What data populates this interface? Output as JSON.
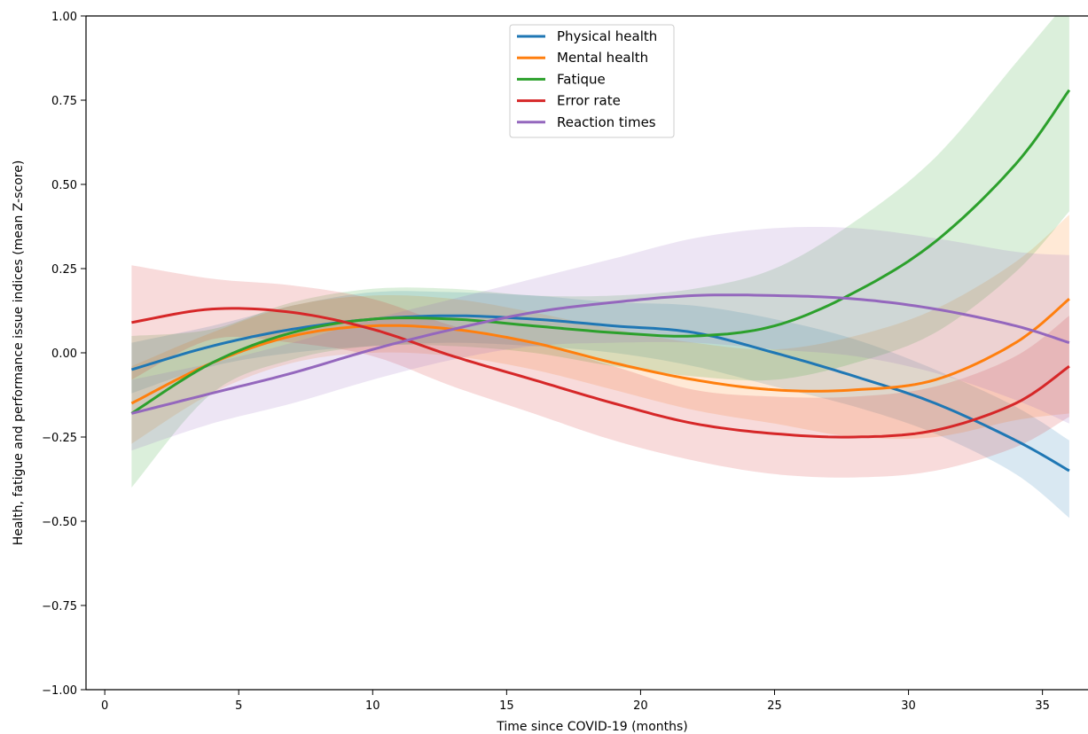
{
  "chart_data": {
    "type": "line",
    "title": "",
    "xlabel": "Time since COVID-19 (months)",
    "ylabel": "Health, fatigue and performance issue indices (mean Z-score)",
    "xlim": [
      -0.7,
      36.7
    ],
    "ylim": [
      -1.0,
      1.0
    ],
    "x_ticks": [
      0,
      5,
      10,
      15,
      20,
      25,
      30,
      35
    ],
    "x_tick_labels": [
      "0",
      "5",
      "10",
      "15",
      "20",
      "25",
      "30",
      "35"
    ],
    "y_ticks": [
      -1.0,
      -0.75,
      -0.5,
      -0.25,
      0.0,
      0.25,
      0.5,
      0.75,
      1.0
    ],
    "y_tick_labels": [
      "−1.00",
      "−0.75",
      "−0.50",
      "−0.25",
      "0.00",
      "0.25",
      "0.50",
      "0.75",
      "1.00"
    ],
    "grid": false,
    "legend_position": "top-center",
    "x": [
      1,
      4,
      7,
      10,
      13,
      16,
      19,
      22,
      25,
      28,
      31,
      34,
      36
    ],
    "series": [
      {
        "name": "Physical health",
        "color": "#1f77b4",
        "values": [
          -0.05,
          0.02,
          0.07,
          0.1,
          0.11,
          0.1,
          0.08,
          0.06,
          0.0,
          -0.07,
          -0.15,
          -0.26,
          -0.35
        ],
        "lower": [
          -0.12,
          -0.04,
          0.0,
          0.02,
          0.03,
          0.02,
          0.0,
          -0.04,
          -0.1,
          -0.16,
          -0.24,
          -0.36,
          -0.49
        ],
        "upper": [
          0.03,
          0.08,
          0.14,
          0.18,
          0.18,
          0.17,
          0.15,
          0.14,
          0.1,
          0.04,
          -0.05,
          -0.16,
          -0.26
        ]
      },
      {
        "name": "Mental health",
        "color": "#ff7f0e",
        "values": [
          -0.15,
          -0.03,
          0.05,
          0.08,
          0.07,
          0.03,
          -0.03,
          -0.08,
          -0.11,
          -0.11,
          -0.08,
          0.03,
          0.16
        ],
        "lower": [
          -0.27,
          -0.12,
          -0.03,
          0.0,
          -0.01,
          -0.05,
          -0.11,
          -0.17,
          -0.21,
          -0.25,
          -0.25,
          -0.2,
          -0.18
        ],
        "upper": [
          -0.04,
          0.06,
          0.14,
          0.17,
          0.16,
          0.12,
          0.07,
          0.03,
          0.01,
          0.05,
          0.13,
          0.27,
          0.41
        ]
      },
      {
        "name": "Fatique",
        "color": "#2ca02c",
        "values": [
          -0.18,
          -0.03,
          0.06,
          0.1,
          0.1,
          0.08,
          0.06,
          0.05,
          0.08,
          0.18,
          0.33,
          0.56,
          0.78
        ],
        "lower": [
          -0.4,
          -0.12,
          -0.02,
          0.02,
          0.02,
          0.0,
          -0.04,
          -0.07,
          -0.08,
          -0.03,
          0.06,
          0.24,
          0.42
        ],
        "upper": [
          0.05,
          0.07,
          0.15,
          0.19,
          0.19,
          0.17,
          0.17,
          0.19,
          0.25,
          0.39,
          0.58,
          0.86,
          1.05
        ]
      },
      {
        "name": "Error rate",
        "color": "#d62728",
        "values": [
          0.09,
          0.13,
          0.12,
          0.07,
          -0.01,
          -0.08,
          -0.15,
          -0.21,
          -0.24,
          -0.25,
          -0.23,
          -0.15,
          -0.04
        ],
        "lower": [
          -0.08,
          0.04,
          0.03,
          -0.01,
          -0.1,
          -0.18,
          -0.26,
          -0.32,
          -0.36,
          -0.37,
          -0.35,
          -0.28,
          -0.19
        ],
        "upper": [
          0.26,
          0.22,
          0.2,
          0.16,
          0.08,
          0.03,
          -0.04,
          -0.11,
          -0.13,
          -0.13,
          -0.1,
          -0.01,
          0.11
        ]
      },
      {
        "name": "Reaction times",
        "color": "#9467bd",
        "values": [
          -0.18,
          -0.12,
          -0.06,
          0.01,
          0.07,
          0.12,
          0.15,
          0.17,
          0.17,
          0.16,
          0.13,
          0.08,
          0.03
        ],
        "lower": [
          -0.29,
          -0.21,
          -0.15,
          -0.08,
          -0.02,
          0.02,
          0.03,
          0.03,
          0.01,
          -0.01,
          -0.06,
          -0.14,
          -0.21
        ],
        "upper": [
          -0.08,
          -0.03,
          0.03,
          0.1,
          0.16,
          0.22,
          0.28,
          0.34,
          0.37,
          0.37,
          0.34,
          0.3,
          0.29
        ]
      }
    ]
  }
}
